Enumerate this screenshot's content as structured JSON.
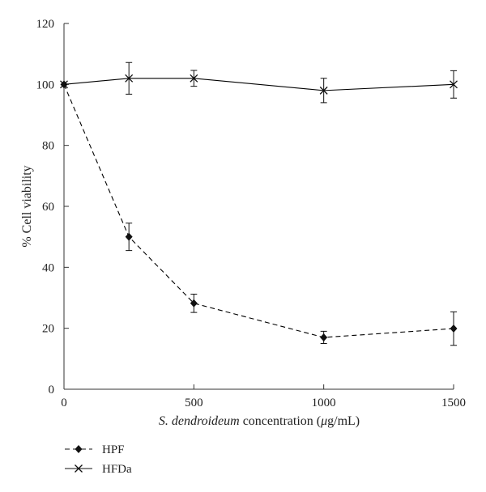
{
  "chart_data": {
    "type": "line",
    "x": [
      0,
      250,
      500,
      1000,
      1500
    ],
    "xticks": [
      0,
      500,
      1000,
      1500
    ],
    "yticks": [
      0,
      20,
      40,
      60,
      80,
      100,
      120
    ],
    "xlim": [
      0,
      1500
    ],
    "ylim": [
      0,
      120
    ],
    "xlabel_italic": "S. dendroideum",
    "xlabel_rest_1": " concentration (",
    "xlabel_mu": "μ",
    "xlabel_rest_2": "g/mL)",
    "ylabel": "% Cell viability",
    "grid": false,
    "legend_position": "bottom-left",
    "series": [
      {
        "name": "HPF",
        "values": [
          100,
          50,
          28.2,
          17,
          19.9
        ],
        "errors": [
          0,
          4.5,
          3.0,
          2.0,
          5.5
        ],
        "marker": "diamond",
        "line_style": "dashed",
        "color": "#000000"
      },
      {
        "name": "HFDa",
        "values": [
          100,
          102,
          102,
          98,
          100
        ],
        "errors": [
          0,
          5.2,
          2.6,
          4.0,
          4.5
        ],
        "marker": "x",
        "line_style": "solid",
        "color": "#000000"
      }
    ]
  }
}
